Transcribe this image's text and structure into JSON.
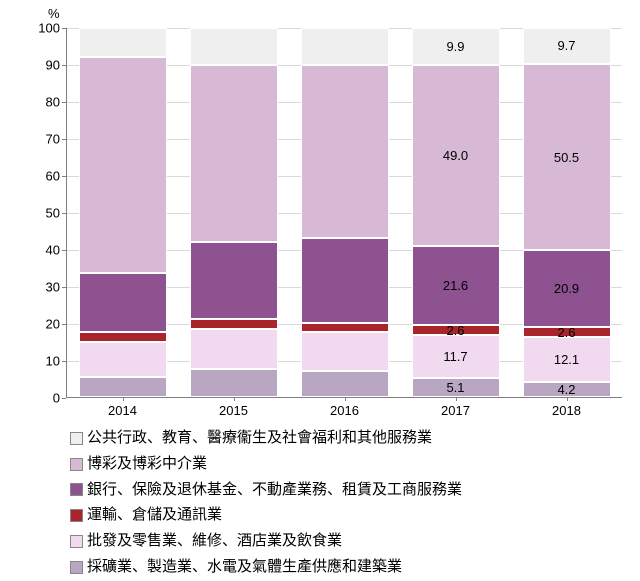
{
  "chart": {
    "type": "stacked-bar",
    "y_unit": "%",
    "ylim": [
      0,
      100
    ],
    "ytick_step": 10,
    "grid_color": "#d9d9d9",
    "axis_color": "#808080",
    "background_color": "#ffffff",
    "bar_border_color": "#ffffff",
    "categories": [
      "2014",
      "2015",
      "2016",
      "2017",
      "2018"
    ],
    "series_order_bottom_to_top": [
      "mining",
      "wholesale",
      "transport",
      "banking",
      "gaming",
      "public"
    ],
    "series": {
      "mining": {
        "color": "#b9a6c2",
        "label": "採礦業、製造業、水電及氣體生產供應和建築業"
      },
      "wholesale": {
        "color": "#f1d9ef",
        "label": "批發及零售業、維修、酒店業及飲食業"
      },
      "transport": {
        "color": "#a9242b",
        "label": "運輸、倉儲及通訊業"
      },
      "banking": {
        "color": "#8d528f",
        "label": "銀行、保險及退休基金、不動產業務、租賃及工商服務業"
      },
      "gaming": {
        "color": "#d7b9d6",
        "label": "博彩及博彩中介業"
      },
      "public": {
        "color": "#efefef",
        "label": "公共行政、教育、醫療衞生及社會福利和其他服務業"
      }
    },
    "data": {
      "2014": {
        "mining": 5.5,
        "wholesale": 9.5,
        "transport": 2.6,
        "banking": 16.0,
        "gaming": 58.5,
        "public": 7.9
      },
      "2015": {
        "mining": 7.5,
        "wholesale": 11.0,
        "transport": 2.6,
        "banking": 21.0,
        "gaming": 48.0,
        "public": 9.9
      },
      "2016": {
        "mining": 7.0,
        "wholesale": 10.5,
        "transport": 2.6,
        "banking": 23.0,
        "gaming": 47.0,
        "public": 9.9
      },
      "2017": {
        "mining": 5.1,
        "wholesale": 11.7,
        "transport": 2.6,
        "banking": 21.6,
        "gaming": 49.0,
        "public": 9.9
      },
      "2018": {
        "mining": 4.2,
        "wholesale": 12.1,
        "transport": 2.6,
        "banking": 20.9,
        "gaming": 50.5,
        "public": 9.7
      }
    },
    "labels_on_bars": {
      "2017": {
        "mining": "5.1",
        "wholesale": "11.7",
        "transport": "2.6",
        "banking": "21.6",
        "gaming": "49.0",
        "public": "9.9"
      },
      "2018": {
        "mining": "4.2",
        "wholesale": "12.1",
        "transport": "2.6",
        "banking": "20.9",
        "gaming": "50.5",
        "public": "9.7"
      }
    },
    "label_fontsize": 13,
    "legend_fontsize": 15,
    "legend_order_top_to_bottom": [
      "public",
      "gaming",
      "banking",
      "transport",
      "wholesale",
      "mining"
    ]
  }
}
